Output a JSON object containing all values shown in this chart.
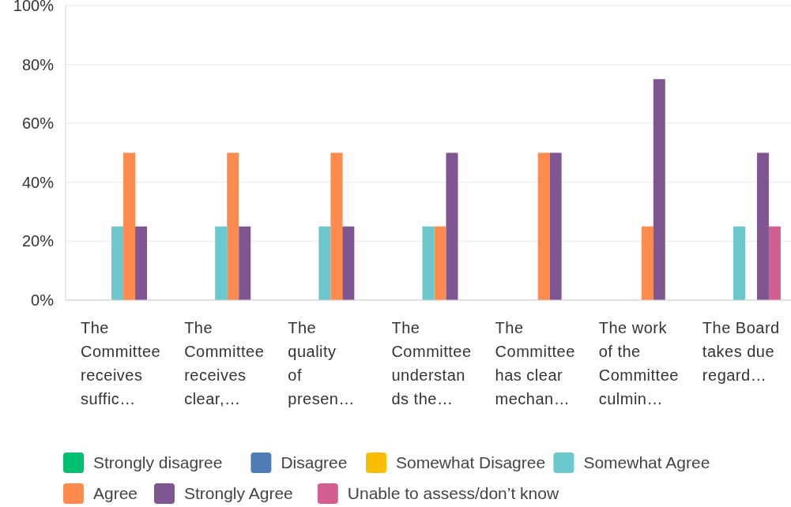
{
  "chart_data": {
    "type": "bar",
    "categories": [
      "The Committee receives suffic…",
      "The Committee receives clear,…",
      "The quality of presen…",
      "The Committee understands the…",
      "The Committee has clear mechan…",
      "The work of the Committee culmin…",
      "The Board takes due regard…"
    ],
    "series": [
      {
        "name": "Strongly disagree",
        "color": "#00bf6f",
        "values": [
          0,
          0,
          0,
          0,
          0,
          0,
          0
        ]
      },
      {
        "name": "Disagree",
        "color": "#507cb6",
        "values": [
          0,
          0,
          0,
          0,
          0,
          0,
          0
        ]
      },
      {
        "name": "Somewhat Disagree",
        "color": "#f9be00",
        "values": [
          0,
          0,
          0,
          0,
          0,
          0,
          0
        ]
      },
      {
        "name": "Somewhat Agree",
        "color": "#6bc8cd",
        "values": [
          25,
          25,
          25,
          25,
          0,
          0,
          25
        ]
      },
      {
        "name": "Agree",
        "color": "#ff8b4f",
        "values": [
          50,
          50,
          50,
          25,
          50,
          25,
          0
        ]
      },
      {
        "name": "Strongly Agree",
        "color": "#7f5691",
        "values": [
          25,
          25,
          25,
          50,
          50,
          75,
          50
        ]
      },
      {
        "name": "Unable to assess/don’t know",
        "color": "#d25f90",
        "values": [
          0,
          0,
          0,
          0,
          0,
          0,
          25
        ]
      }
    ],
    "ylim": [
      0,
      100
    ],
    "yticks": [
      {
        "value": 0,
        "label": "0%"
      },
      {
        "value": 20,
        "label": "20%"
      },
      {
        "value": 40,
        "label": "40%"
      },
      {
        "value": 60,
        "label": "60%"
      },
      {
        "value": 80,
        "label": "80%"
      },
      {
        "value": 100,
        "label": "100%"
      }
    ],
    "grid": "y",
    "legend": "bottom"
  }
}
